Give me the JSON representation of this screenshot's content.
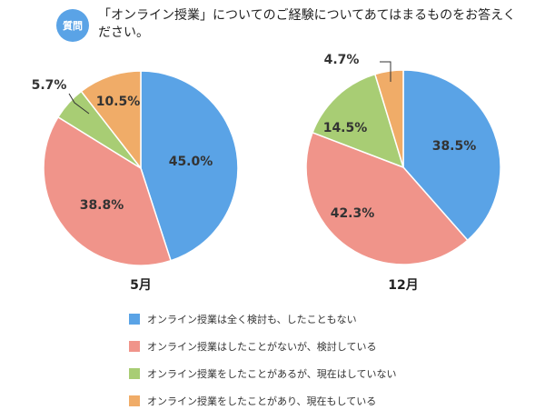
{
  "question": {
    "badge": "質問",
    "text": "「オンライン授業」についてのご経験についてあてはまるものをお答えください。"
  },
  "colors": [
    "#5aa3e6",
    "#f0948a",
    "#a8cd74",
    "#f0ac68"
  ],
  "chart_data": {
    "type": "pie",
    "title": "「オンライン授業」についてのご経験についてあてはまるものをお答えください。",
    "categories": [
      "オンライン授業は全く検討も、したこともない",
      "オンライン授業はしたことがないが、検討している",
      "オンライン授業をしたことがあるが、現在はしていない",
      "オンライン授業をしたことがあり、現在もしている"
    ],
    "series": [
      {
        "name": "5月",
        "values": [
          45.0,
          38.8,
          5.7,
          10.5
        ],
        "labels": [
          "45.0%",
          "38.8%",
          "5.7%",
          "10.5%"
        ]
      },
      {
        "name": "12月",
        "values": [
          38.5,
          42.3,
          14.5,
          4.7
        ],
        "labels": [
          "38.5%",
          "42.3%",
          "14.5%",
          "4.7%"
        ]
      }
    ],
    "legend_position": "bottom"
  }
}
